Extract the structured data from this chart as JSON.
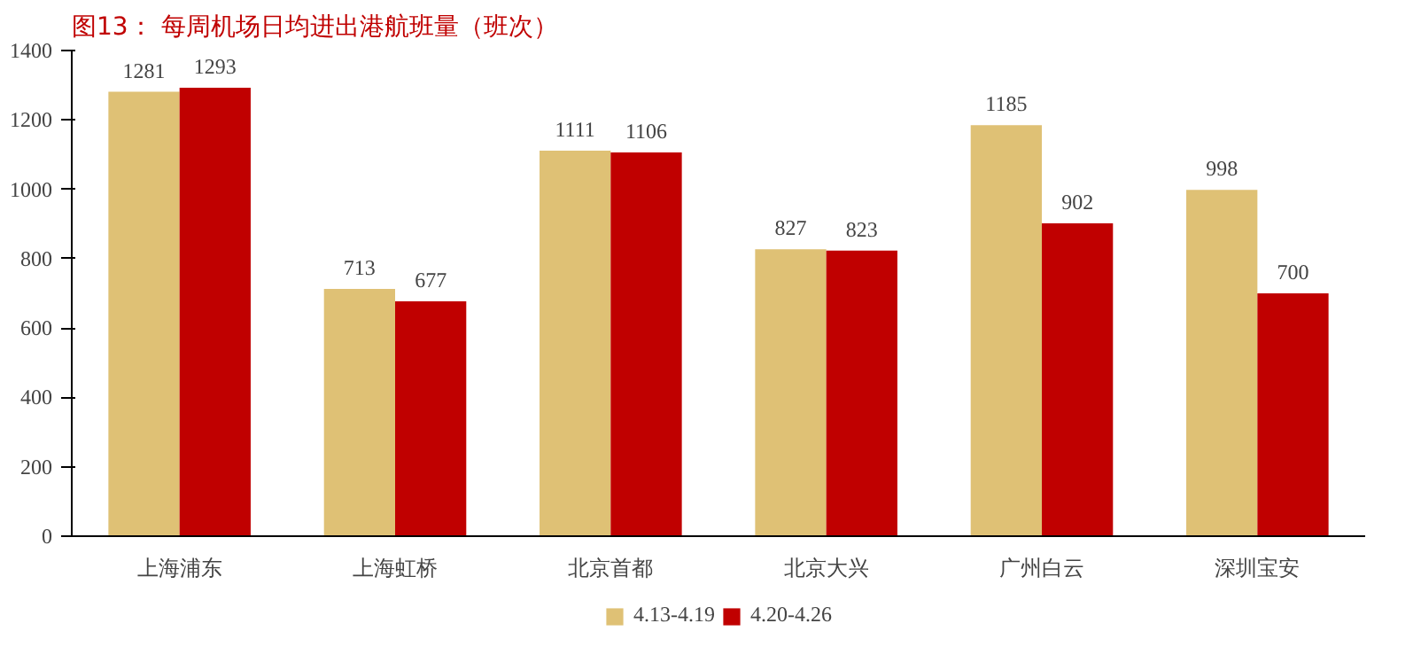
{
  "chart_data": {
    "type": "bar",
    "title": "图13：  每周机场日均进出港航班量（班次）",
    "categories": [
      "上海浦东",
      "上海虹桥",
      "北京首都",
      "北京大兴",
      "广州白云",
      "深圳宝安"
    ],
    "series": [
      {
        "name": "4.13-4.19",
        "color": "#dfc175",
        "values": [
          1281,
          713,
          1111,
          827,
          1185,
          998
        ]
      },
      {
        "name": "4.20-4.26",
        "color": "#c00000",
        "values": [
          1293,
          677,
          1106,
          823,
          902,
          700
        ]
      }
    ],
    "ylim": [
      0,
      1400
    ],
    "yticks": [
      0,
      200,
      400,
      600,
      800,
      1000,
      1200,
      1400
    ],
    "data_labels": true,
    "grid": false,
    "legend": "bottom"
  }
}
